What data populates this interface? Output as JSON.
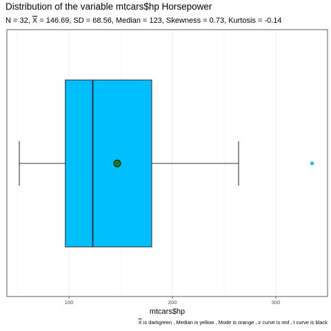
{
  "title": "Distribution of the variable mtcars$hp Horsepower",
  "subtitle": {
    "n": "N = 32, ",
    "mean_symbol": "X",
    "rest": " = 146.69, SD = 68.56, Median = 123, Skewness = 0.73, Kurtosis = -0.14"
  },
  "caption": {
    "mean_symbol": "X",
    "rest": " is darkgreen , Median is yellow , Mode is orange , z curve is red , t curve is black"
  },
  "chart_data": {
    "type": "boxplot",
    "xlabel": "mtcars$hp",
    "ylabel": "",
    "xlim": [
      40,
      350
    ],
    "x_ticks": [
      100,
      200,
      300
    ],
    "grid": true,
    "box": {
      "whisker_low": 52,
      "q1": 96.5,
      "median": 123,
      "q3": 180,
      "whisker_high": 264,
      "mean": 146.69
    },
    "outliers": [
      335
    ],
    "colors": {
      "box_fill": "#00bfff",
      "mean_point": "#1a7a1a",
      "outlier": "#00bfff",
      "grid": "#ebebeb",
      "outline": "#333333"
    }
  }
}
